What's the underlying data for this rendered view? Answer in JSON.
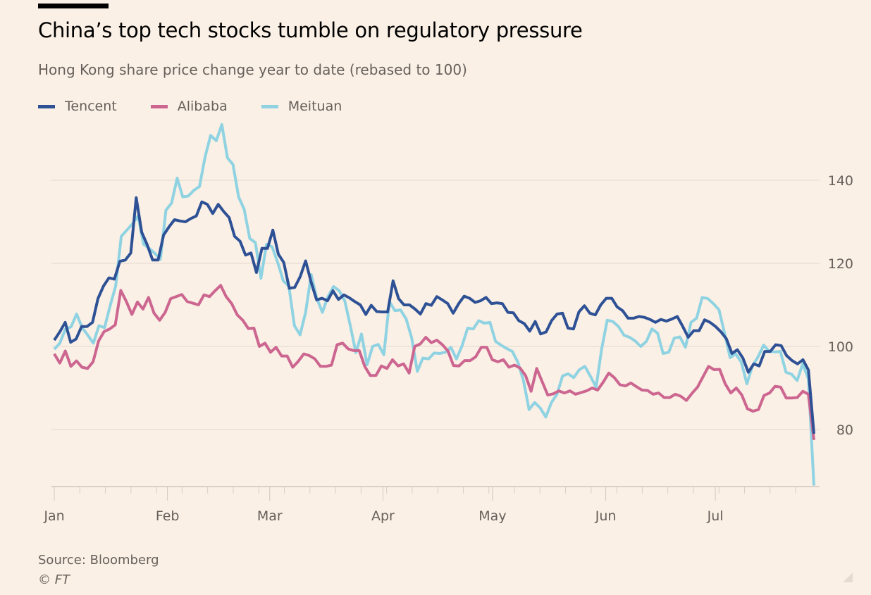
{
  "header": {
    "title": "China’s top tech stocks tumble on regulatory pressure",
    "subtitle": "Hong Kong share price change year to date (rebased to 100)"
  },
  "legend": [
    {
      "name": "Tencent",
      "color": "#2e5196"
    },
    {
      "name": "Alibaba",
      "color": "#cc6690"
    },
    {
      "name": "Meituan",
      "color": "#8fd3e3"
    }
  ],
  "footer": {
    "source": "Source: Bloomberg",
    "copyright": "© FT"
  },
  "chart_data": {
    "type": "line",
    "title": "China’s top tech stocks tumble on regulatory pressure",
    "subtitle": "Hong Kong share price change year to date (rebased to 100)",
    "xlabel": "",
    "ylabel": "",
    "ylim": [
      66,
      154
    ],
    "yticks": [
      80,
      100,
      120,
      140
    ],
    "y_axis_side": "right",
    "grid": true,
    "legend_position": "top-left",
    "x_range_days": [
      0,
      208
    ],
    "x_month_ticks": [
      {
        "label": "Jan",
        "day": 0
      },
      {
        "label": "Feb",
        "day": 31
      },
      {
        "label": "Mar",
        "day": 59
      },
      {
        "label": "Apr",
        "day": 90
      },
      {
        "label": "May",
        "day": 120
      },
      {
        "label": "Jun",
        "day": 151
      },
      {
        "label": "Jul",
        "day": 181
      }
    ],
    "series": [
      {
        "name": "Tencent",
        "color": "#2e5196",
        "values": [
          101.5,
          103.5,
          105.8,
          101,
          101.8,
          104.8,
          104.8,
          105.8,
          111.5,
          114.5,
          116.5,
          116.2,
          120.5,
          120.8,
          122.5,
          135.8,
          127.5,
          124.5,
          120.8,
          120.8,
          126.8,
          128.8,
          130.5,
          130.2,
          130,
          130.8,
          131.4,
          134.8,
          134.2,
          132,
          134.2,
          132.5,
          131,
          126.5,
          125.3,
          122,
          122.5,
          117.8,
          123.6,
          123.6,
          128,
          122.2,
          120.2,
          114,
          114.2,
          116.8,
          120.6,
          115.5,
          111.2,
          111.6,
          111,
          113.4,
          111.3,
          112.4,
          111.7,
          110.8,
          110,
          107.7,
          109.9,
          108.4,
          108.3,
          108.3,
          115.8,
          111.5,
          110,
          110,
          109,
          107.8,
          110.3,
          109.9,
          112,
          111.2,
          110.3,
          108,
          110.3,
          112.1,
          111.6,
          110.6,
          111,
          111.8,
          110.3,
          110.5,
          110.3,
          108.2,
          108.1,
          106.2,
          105.5,
          103.7,
          106,
          103,
          103.5,
          106.2,
          107.8,
          108,
          104.4,
          104.2,
          108.3,
          109.8,
          108,
          107.6,
          110,
          111.6,
          111.6,
          109.5,
          108.6,
          106.8,
          106.8,
          107.2,
          107,
          106.5,
          105.8,
          106.5,
          106.1,
          106.6,
          107.2,
          104.8,
          102.2,
          103.8,
          103.8,
          106.4,
          105.8,
          104.8,
          103.5,
          101.8,
          98.3,
          99.2,
          97.2,
          93.8,
          95.8,
          95.3,
          98.8,
          98.8,
          100.4,
          100.2,
          97.8,
          96.6,
          95.8,
          96.8,
          94.3,
          79
        ]
      },
      {
        "name": "Alibaba",
        "color": "#cc6690",
        "values": [
          98.2,
          96,
          98.9,
          95.2,
          96.5,
          95,
          94.7,
          96.3,
          101.3,
          103.6,
          104.2,
          105.2,
          113.5,
          110.8,
          107.7,
          110.7,
          109,
          111.8,
          108,
          106.3,
          108.2,
          111.5,
          112,
          112.5,
          110.8,
          110.4,
          110,
          112.4,
          112,
          113.4,
          114.7,
          112,
          110.3,
          107.6,
          106.3,
          104.3,
          104.4,
          100,
          100.8,
          98.6,
          99.8,
          97.7,
          97.7,
          95,
          96.4,
          98.2,
          97.8,
          97,
          95.2,
          95.2,
          95.5,
          100.4,
          100.8,
          99.4,
          99,
          99,
          95.2,
          93,
          93,
          95.3,
          94.7,
          96.8,
          95.3,
          95.8,
          93.6,
          100,
          100.6,
          102.2,
          100.9,
          101.5,
          100.4,
          98.9,
          95.4,
          95.3,
          96.6,
          96.6,
          97.5,
          99.8,
          99.8,
          96.8,
          96.3,
          96.8,
          95,
          95.5,
          94.8,
          93,
          89.2,
          94.7,
          91.5,
          88.3,
          88.6,
          89.3,
          88.8,
          89.3,
          88.5,
          88.9,
          89.3,
          90,
          89.5,
          91.4,
          93.6,
          92.5,
          90.8,
          90.5,
          91.2,
          90.3,
          89.5,
          89.4,
          88.5,
          88.8,
          87.7,
          87.7,
          88.5,
          88,
          87,
          88.7,
          90.2,
          92.7,
          95.2,
          94.4,
          94.5,
          91,
          88.8,
          90,
          88.3,
          85,
          84.4,
          84.8,
          88.2,
          88.8,
          90.4,
          90.2,
          87.6,
          87.6,
          87.7,
          89.2,
          88.5,
          77.5
        ]
      },
      {
        "name": "Meituan",
        "color": "#8fd3e3",
        "values": [
          99.3,
          100.8,
          104.2,
          104.7,
          107.8,
          104.5,
          102.7,
          100.8,
          105,
          104.5,
          109.8,
          114.6,
          126.5,
          128,
          129.5,
          131.4,
          124.6,
          123.6,
          122.4,
          121,
          132.8,
          134.5,
          140.5,
          136,
          136.2,
          137.6,
          138.5,
          145.6,
          150.8,
          149.5,
          153.4,
          145.4,
          143.8,
          136,
          133,
          126,
          125,
          116.4,
          124.6,
          124,
          120.2,
          115.8,
          114.5,
          105,
          102.8,
          108.2,
          117.3,
          111.6,
          108.2,
          112,
          114.4,
          113.4,
          111,
          105,
          98.5,
          103,
          95.6,
          100,
          100.5,
          98,
          110.8,
          108.6,
          108.8,
          106.6,
          102,
          94,
          97.2,
          97,
          98.4,
          98.3,
          98.6,
          99.8,
          97,
          100.1,
          104.4,
          104.2,
          106.2,
          105.6,
          105.8,
          101.2,
          100.3,
          99.5,
          98.8,
          96.2,
          91.8,
          84.8,
          86.5,
          85.2,
          83,
          86.5,
          88.5,
          92.9,
          93.4,
          92.5,
          94.4,
          95.2,
          92.8,
          90.2,
          99.4,
          106.3,
          106,
          104.8,
          102.7,
          102.2,
          101.3,
          100,
          101.2,
          104.2,
          103.2,
          98.3,
          98.6,
          102,
          102.3,
          99.8,
          105.8,
          106.8,
          111.8,
          111.5,
          110.3,
          108.8,
          103.2,
          97.3,
          98.2,
          96.2,
          91,
          95.3,
          97.5,
          100.3,
          98.8,
          98.7,
          98.8,
          93.8,
          93.3,
          91.8,
          95.8,
          92.2,
          66.5
        ]
      }
    ]
  }
}
